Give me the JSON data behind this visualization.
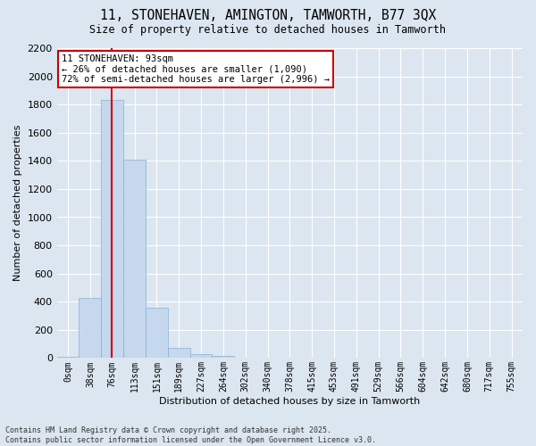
{
  "title": "11, STONEHAVEN, AMINGTON, TAMWORTH, B77 3QX",
  "subtitle": "Size of property relative to detached houses in Tamworth",
  "xlabel": "Distribution of detached houses by size in Tamworth",
  "ylabel": "Number of detached properties",
  "bar_color": "#c5d8ed",
  "bar_edge_color": "#8ab0d0",
  "background_color": "#dce6f0",
  "grid_color": "#ffffff",
  "categories": [
    "0sqm",
    "38sqm",
    "76sqm",
    "113sqm",
    "151sqm",
    "189sqm",
    "227sqm",
    "264sqm",
    "302sqm",
    "340sqm",
    "378sqm",
    "415sqm",
    "453sqm",
    "491sqm",
    "529sqm",
    "566sqm",
    "604sqm",
    "642sqm",
    "680sqm",
    "717sqm",
    "755sqm"
  ],
  "values": [
    10,
    430,
    1830,
    1410,
    360,
    75,
    30,
    15,
    0,
    0,
    0,
    0,
    0,
    0,
    0,
    0,
    0,
    0,
    0,
    0,
    0
  ],
  "ylim": [
    0,
    2200
  ],
  "yticks": [
    0,
    200,
    400,
    600,
    800,
    1000,
    1200,
    1400,
    1600,
    1800,
    2000,
    2200
  ],
  "red_line_color": "#cc0000",
  "red_line_x": 1.96,
  "annotation_line1": "11 STONEHAVEN: 93sqm",
  "annotation_line2": "← 26% of detached houses are smaller (1,090)",
  "annotation_line3": "72% of semi-detached houses are larger (2,996) →",
  "annotation_box_color": "#ffffff",
  "annotation_border_color": "#cc0000",
  "footer_line1": "Contains HM Land Registry data © Crown copyright and database right 2025.",
  "footer_line2": "Contains public sector information licensed under the Open Government Licence v3.0."
}
